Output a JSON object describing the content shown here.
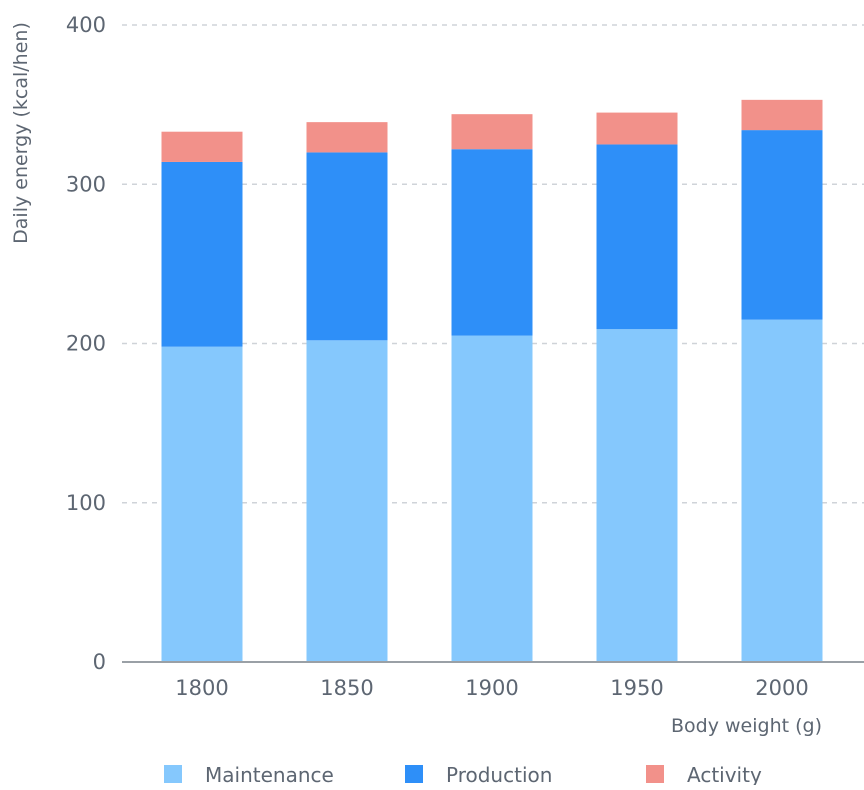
{
  "chart_data": {
    "type": "bar",
    "stacked": true,
    "categories": [
      "1800",
      "1850",
      "1900",
      "1950",
      "2000"
    ],
    "series": [
      {
        "name": "Maintenance",
        "values": [
          198,
          202,
          205,
          209,
          215
        ],
        "color": "#85c8fd"
      },
      {
        "name": "Production",
        "values": [
          116,
          118,
          117,
          116,
          119
        ],
        "color": "#2e8ff8"
      },
      {
        "name": "Activity",
        "values": [
          19,
          19,
          22,
          20,
          19
        ],
        "color": "#f2918a"
      }
    ],
    "xlabel": "Body weight (g)",
    "ylabel": "Daily energy (kcal/hen)",
    "ylim": [
      0,
      400
    ],
    "yticks": [
      "0",
      "100",
      "200",
      "300",
      "400"
    ],
    "grid": true,
    "legend_position": "bottom"
  }
}
